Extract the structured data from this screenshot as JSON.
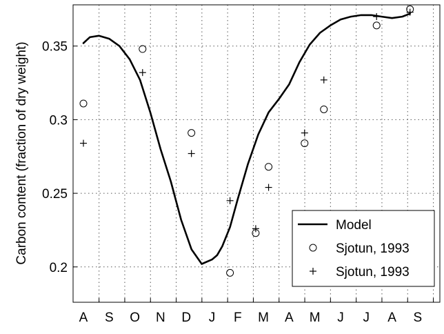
{
  "chart_data": {
    "type": "line",
    "ylabel": "Carbon content (fraction of dry weight)",
    "categories": [
      "A",
      "S",
      "O",
      "N",
      "D",
      "J",
      "F",
      "M",
      "A",
      "M",
      "J",
      "J",
      "A",
      "S"
    ],
    "ylim": [
      0.176,
      0.378
    ],
    "yticks": [
      0.2,
      0.25,
      0.3,
      0.35
    ],
    "ytick_labels": [
      "0.2",
      "0.25",
      "0.3",
      "0.35"
    ],
    "grid": "dotted",
    "legend_position": "bottom-right",
    "series": [
      {
        "name": "Model",
        "style": "line",
        "color": "#000000",
        "x": [
          0.0,
          0.25,
          0.6,
          1.0,
          1.4,
          1.8,
          2.2,
          2.6,
          3.0,
          3.4,
          3.8,
          4.2,
          4.6,
          5.0,
          5.2,
          5.4,
          5.7,
          6.0,
          6.4,
          6.8,
          7.2,
          7.6,
          8.0,
          8.4,
          8.8,
          9.2,
          9.6,
          10.0,
          10.4,
          10.8,
          11.2,
          11.6,
          12.0,
          12.4,
          12.7
        ],
        "y": [
          0.352,
          0.356,
          0.357,
          0.355,
          0.35,
          0.341,
          0.327,
          0.305,
          0.28,
          0.258,
          0.232,
          0.212,
          0.202,
          0.205,
          0.208,
          0.214,
          0.227,
          0.246,
          0.27,
          0.29,
          0.305,
          0.314,
          0.324,
          0.339,
          0.351,
          0.359,
          0.364,
          0.368,
          0.37,
          0.371,
          0.371,
          0.37,
          0.369,
          0.37,
          0.372
        ]
      },
      {
        "name": "Sjotun, 1993",
        "style": "circle",
        "color": "#000000",
        "x": [
          0.0,
          2.3,
          4.2,
          5.7,
          6.7,
          7.2,
          8.6,
          9.35,
          11.4,
          12.7
        ],
        "y": [
          0.311,
          0.348,
          0.291,
          0.196,
          0.223,
          0.268,
          0.284,
          0.307,
          0.364,
          0.375
        ]
      },
      {
        "name": "Sjotun, 1993",
        "style": "plus",
        "color": "#000000",
        "x": [
          0.0,
          2.3,
          4.2,
          5.7,
          6.7,
          7.2,
          8.6,
          9.35,
          11.4,
          12.7
        ],
        "y": [
          0.284,
          0.332,
          0.277,
          0.245,
          0.226,
          0.254,
          0.291,
          0.327,
          0.37,
          0.373
        ]
      }
    ]
  }
}
